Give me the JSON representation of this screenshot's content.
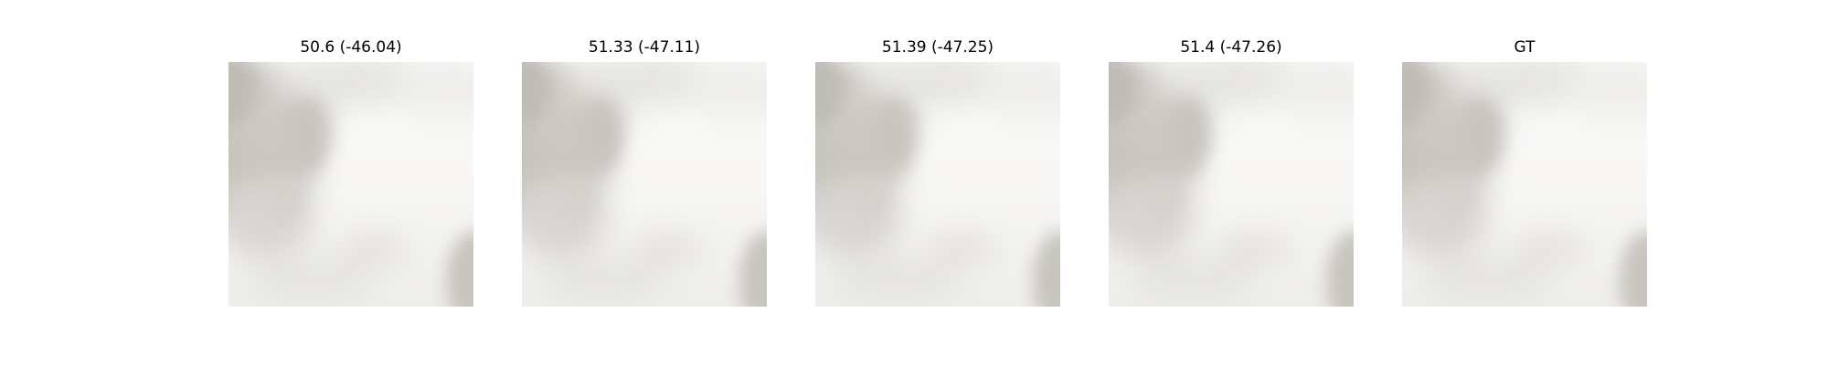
{
  "figure": {
    "panels": [
      {
        "title": "50.6 (-46.04)"
      },
      {
        "title": "51.33 (-47.11)"
      },
      {
        "title": "51.39 (-47.25)"
      },
      {
        "title": "51.4 (-47.26)"
      },
      {
        "title": "GT"
      }
    ]
  }
}
